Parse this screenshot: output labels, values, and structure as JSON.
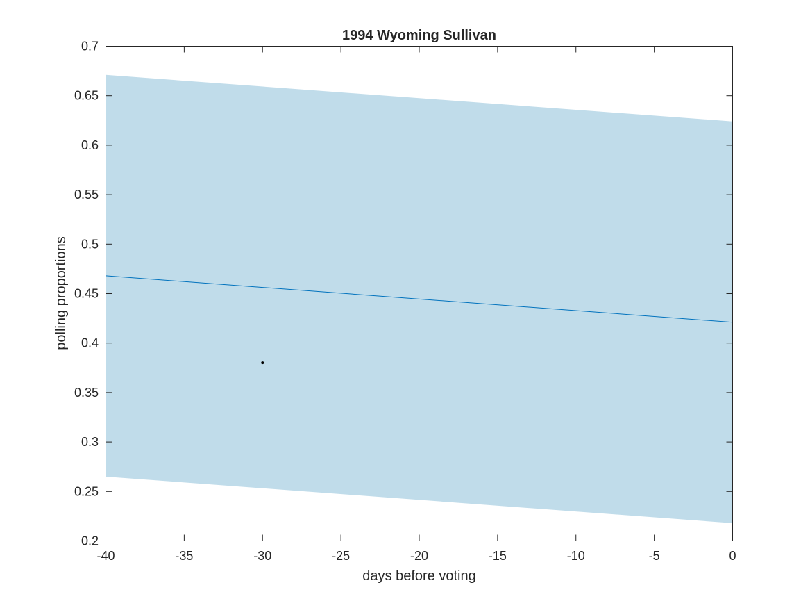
{
  "chart_data": {
    "type": "line",
    "title": "1994 Wyoming Sullivan",
    "xlabel": "days before voting",
    "ylabel": "polling proportions",
    "xlim": [
      -40,
      0
    ],
    "ylim": [
      0.2,
      0.7
    ],
    "xticks": [
      -40,
      -35,
      -30,
      -25,
      -20,
      -15,
      -10,
      -5,
      0
    ],
    "xtick_labels": [
      "-40",
      "-35",
      "-30",
      "-25",
      "-20",
      "-15",
      "-10",
      "-5",
      "0"
    ],
    "yticks": [
      0.2,
      0.25,
      0.3,
      0.35,
      0.4,
      0.45,
      0.5,
      0.55,
      0.6,
      0.65,
      0.7
    ],
    "ytick_labels": [
      "0.2",
      "0.25",
      "0.3",
      "0.35",
      "0.4",
      "0.45",
      "0.5",
      "0.55",
      "0.6",
      "0.65",
      "0.7"
    ],
    "grid": false,
    "band": {
      "x": [
        -40,
        0
      ],
      "upper": [
        0.671,
        0.624
      ],
      "lower": [
        0.265,
        0.218
      ],
      "color": "#c0dcea"
    },
    "trend_line": {
      "x": [
        -40,
        0
      ],
      "y": [
        0.468,
        0.421
      ],
      "color": "#0072bd"
    },
    "points": {
      "x": [
        -30
      ],
      "y": [
        0.38
      ],
      "color": "#000000"
    },
    "axis_color": "#262626"
  }
}
